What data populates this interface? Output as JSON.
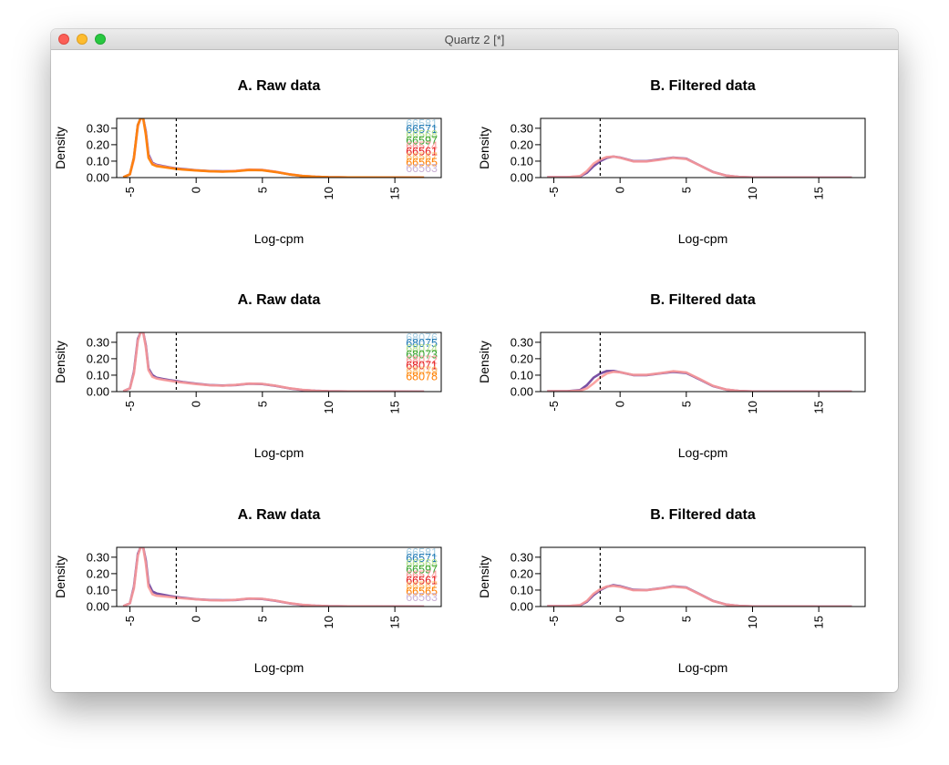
{
  "window": {
    "title": "Quartz 2 [*]"
  },
  "colors": {
    "series": [
      "#a6cee3",
      "#1f78b4",
      "#b2df8a",
      "#33a02c",
      "#fb9a99",
      "#e31a1c",
      "#fdbf6f",
      "#ff7f00",
      "#cab2d6",
      "#6a3d9a"
    ]
  },
  "chart_data": [
    {
      "type": "line",
      "title": "A. Raw data",
      "xlabel": "Log-cpm",
      "ylabel": "Density",
      "xlim": [
        -6,
        18.5
      ],
      "ylim": [
        0,
        0.36
      ],
      "xticks": [
        -5,
        0,
        5,
        10,
        15
      ],
      "yticks": [
        0.0,
        0.1,
        0.2,
        0.3
      ],
      "ytick_labels": [
        "0.00",
        "0.10",
        "0.20",
        "0.30"
      ],
      "cutoff_x": -1.5,
      "legend_position": "top-right",
      "legend": [
        "66581",
        "66571",
        "66568",
        "66597",
        "66574",
        "66561",
        "66567",
        "66565",
        "66563"
      ],
      "x": [
        -5.5,
        -5,
        -4.7,
        -4.4,
        -4.2,
        -4,
        -3.8,
        -3.6,
        -3.3,
        -3,
        -2.5,
        -2,
        -1.5,
        -1,
        0,
        1,
        2,
        3,
        4,
        5,
        6,
        7,
        8,
        9,
        10,
        12,
        15,
        17.2
      ],
      "series": [
        {
          "values": [
            0.002,
            0.02,
            0.12,
            0.32,
            0.36,
            0.36,
            0.28,
            0.14,
            0.09,
            0.078,
            0.07,
            0.062,
            0.056,
            0.052,
            0.045,
            0.04,
            0.038,
            0.04,
            0.048,
            0.046,
            0.035,
            0.02,
            0.01,
            0.005,
            0.002,
            0.001,
            0.0005,
            0.0002
          ]
        },
        {
          "values": [
            0.002,
            0.02,
            0.11,
            0.31,
            0.36,
            0.36,
            0.27,
            0.13,
            0.085,
            0.075,
            0.067,
            0.06,
            0.054,
            0.05,
            0.044,
            0.039,
            0.037,
            0.041,
            0.049,
            0.047,
            0.036,
            0.021,
            0.011,
            0.005,
            0.002,
            0.001,
            0.0005,
            0.0002
          ]
        },
        {
          "values": [
            0.002,
            0.02,
            0.12,
            0.32,
            0.36,
            0.36,
            0.26,
            0.12,
            0.08,
            0.07,
            0.064,
            0.058,
            0.053,
            0.049,
            0.043,
            0.038,
            0.036,
            0.039,
            0.046,
            0.045,
            0.034,
            0.02,
            0.01,
            0.005,
            0.002,
            0.001,
            0.0005,
            0.0002
          ]
        }
      ]
    },
    {
      "type": "line",
      "title": "B. Filtered data",
      "xlabel": "Log-cpm",
      "ylabel": "Density",
      "xlim": [
        -6,
        18.5
      ],
      "ylim": [
        0,
        0.36
      ],
      "xticks": [
        -5,
        0,
        5,
        10,
        15
      ],
      "yticks": [
        0.0,
        0.1,
        0.2,
        0.3
      ],
      "ytick_labels": [
        "0.00",
        "0.10",
        "0.20",
        "0.30"
      ],
      "cutoff_x": -1.5,
      "x": [
        -5.5,
        -4,
        -3,
        -2.5,
        -2,
        -1.5,
        -1,
        -0.5,
        0,
        1,
        2,
        3,
        4,
        5,
        6,
        7,
        8,
        9,
        10,
        12,
        15,
        17.5
      ],
      "series": [
        {
          "values": [
            0.002,
            0.003,
            0.008,
            0.03,
            0.07,
            0.1,
            0.12,
            0.128,
            0.122,
            0.1,
            0.1,
            0.11,
            0.122,
            0.115,
            0.075,
            0.035,
            0.012,
            0.004,
            0.001,
            0.0005,
            0.0002,
            0.0001
          ]
        },
        {
          "values": [
            0.002,
            0.003,
            0.01,
            0.04,
            0.085,
            0.11,
            0.125,
            0.128,
            0.12,
            0.098,
            0.098,
            0.108,
            0.12,
            0.113,
            0.074,
            0.034,
            0.012,
            0.004,
            0.001,
            0.0005,
            0.0002,
            0.0001
          ]
        }
      ]
    },
    {
      "type": "line",
      "title": "A. Raw data",
      "xlabel": "Log-cpm",
      "ylabel": "Density",
      "xlim": [
        -6,
        18.5
      ],
      "ylim": [
        0,
        0.36
      ],
      "xticks": [
        -5,
        0,
        5,
        10,
        15
      ],
      "yticks": [
        0.0,
        0.1,
        0.2,
        0.3
      ],
      "ytick_labels": [
        "0.00",
        "0.10",
        "0.20",
        "0.30"
      ],
      "cutoff_x": -1.5,
      "legend_position": "top-right",
      "legend": [
        "68076",
        "68075",
        "68074",
        "68073",
        "68072",
        "68071",
        "68079",
        "68078"
      ],
      "x": [
        -5.5,
        -5,
        -4.7,
        -4.4,
        -4.2,
        -4,
        -3.8,
        -3.6,
        -3.3,
        -3,
        -2.5,
        -2,
        -1.5,
        -1,
        0,
        1,
        2,
        3,
        4,
        5,
        6,
        7,
        8,
        9,
        10,
        12,
        15,
        17.2
      ],
      "series": [
        {
          "values": [
            0.002,
            0.02,
            0.12,
            0.32,
            0.36,
            0.36,
            0.28,
            0.14,
            0.1,
            0.085,
            0.077,
            0.07,
            0.064,
            0.058,
            0.048,
            0.04,
            0.037,
            0.04,
            0.048,
            0.046,
            0.035,
            0.02,
            0.01,
            0.005,
            0.002,
            0.001,
            0.0005,
            0.0002
          ]
        },
        {
          "values": [
            0.002,
            0.02,
            0.11,
            0.31,
            0.36,
            0.36,
            0.27,
            0.13,
            0.09,
            0.08,
            0.072,
            0.066,
            0.06,
            0.055,
            0.046,
            0.039,
            0.036,
            0.041,
            0.049,
            0.047,
            0.036,
            0.021,
            0.011,
            0.005,
            0.002,
            0.001,
            0.0005,
            0.0002
          ]
        }
      ]
    },
    {
      "type": "line",
      "title": "B. Filtered data",
      "xlabel": "Log-cpm",
      "ylabel": "Density",
      "xlim": [
        -6,
        18.5
      ],
      "ylim": [
        0,
        0.36
      ],
      "xticks": [
        -5,
        0,
        5,
        10,
        15
      ],
      "yticks": [
        0.0,
        0.1,
        0.2,
        0.3
      ],
      "ytick_labels": [
        "0.00",
        "0.10",
        "0.20",
        "0.30"
      ],
      "cutoff_x": -1.5,
      "x": [
        -5.5,
        -4,
        -3,
        -2.5,
        -2,
        -1.5,
        -1,
        -0.5,
        0,
        1,
        2,
        3,
        4,
        5,
        6,
        7,
        8,
        9,
        10,
        12,
        15,
        17.5
      ],
      "series": [
        {
          "values": [
            0.002,
            0.003,
            0.01,
            0.04,
            0.085,
            0.11,
            0.125,
            0.126,
            0.118,
            0.1,
            0.1,
            0.11,
            0.12,
            0.113,
            0.074,
            0.034,
            0.012,
            0.004,
            0.001,
            0.0005,
            0.0002,
            0.0001
          ]
        },
        {
          "values": [
            0.002,
            0.003,
            0.006,
            0.02,
            0.05,
            0.085,
            0.11,
            0.12,
            0.118,
            0.102,
            0.102,
            0.112,
            0.124,
            0.117,
            0.077,
            0.036,
            0.013,
            0.004,
            0.001,
            0.0005,
            0.0002,
            0.0001
          ]
        }
      ]
    },
    {
      "type": "line",
      "title": "A. Raw data",
      "xlabel": "Log-cpm",
      "ylabel": "Density",
      "xlim": [
        -6,
        18.5
      ],
      "ylim": [
        0,
        0.36
      ],
      "xticks": [
        -5,
        0,
        5,
        10,
        15
      ],
      "yticks": [
        0.0,
        0.1,
        0.2,
        0.3
      ],
      "ytick_labels": [
        "0.00",
        "0.10",
        "0.20",
        "0.30"
      ],
      "cutoff_x": -1.5,
      "legend_position": "top-right",
      "legend": [
        "66581",
        "66571",
        "66568",
        "66597",
        "66574",
        "66561",
        "66567",
        "66565",
        "66563"
      ],
      "x": [
        -5.5,
        -5,
        -4.7,
        -4.4,
        -4.2,
        -4,
        -3.8,
        -3.6,
        -3.3,
        -3,
        -2.5,
        -2,
        -1.5,
        -1,
        0,
        1,
        2,
        3,
        4,
        5,
        6,
        7,
        8,
        9,
        10,
        12,
        15,
        17.2
      ],
      "series": [
        {
          "values": [
            0.002,
            0.02,
            0.12,
            0.32,
            0.36,
            0.36,
            0.28,
            0.14,
            0.092,
            0.08,
            0.072,
            0.064,
            0.058,
            0.053,
            0.045,
            0.04,
            0.038,
            0.04,
            0.048,
            0.046,
            0.035,
            0.02,
            0.01,
            0.005,
            0.002,
            0.001,
            0.0005,
            0.0002
          ]
        },
        {
          "values": [
            0.002,
            0.02,
            0.11,
            0.31,
            0.36,
            0.36,
            0.26,
            0.12,
            0.075,
            0.066,
            0.062,
            0.058,
            0.054,
            0.05,
            0.044,
            0.039,
            0.037,
            0.041,
            0.049,
            0.047,
            0.036,
            0.021,
            0.011,
            0.005,
            0.002,
            0.001,
            0.0005,
            0.0002
          ]
        }
      ]
    },
    {
      "type": "line",
      "title": "B. Filtered data",
      "xlabel": "Log-cpm",
      "ylabel": "Density",
      "xlim": [
        -6,
        18.5
      ],
      "ylim": [
        0,
        0.36
      ],
      "xticks": [
        -5,
        0,
        5,
        10,
        15
      ],
      "yticks": [
        0.0,
        0.1,
        0.2,
        0.3
      ],
      "ytick_labels": [
        "0.00",
        "0.10",
        "0.20",
        "0.30"
      ],
      "cutoff_x": -1.5,
      "x": [
        -5.5,
        -4,
        -3,
        -2.5,
        -2,
        -1.5,
        -1,
        -0.5,
        0,
        1,
        2,
        3,
        4,
        5,
        6,
        7,
        8,
        9,
        10,
        12,
        15,
        17.5
      ],
      "series": [
        {
          "values": [
            0.002,
            0.003,
            0.008,
            0.03,
            0.07,
            0.1,
            0.12,
            0.13,
            0.124,
            0.102,
            0.1,
            0.11,
            0.123,
            0.116,
            0.076,
            0.035,
            0.012,
            0.004,
            0.001,
            0.0005,
            0.0002,
            0.0001
          ]
        },
        {
          "values": [
            0.002,
            0.003,
            0.01,
            0.035,
            0.078,
            0.105,
            0.122,
            0.126,
            0.12,
            0.099,
            0.099,
            0.109,
            0.121,
            0.114,
            0.075,
            0.034,
            0.012,
            0.004,
            0.001,
            0.0005,
            0.0002,
            0.0001
          ]
        }
      ]
    }
  ]
}
